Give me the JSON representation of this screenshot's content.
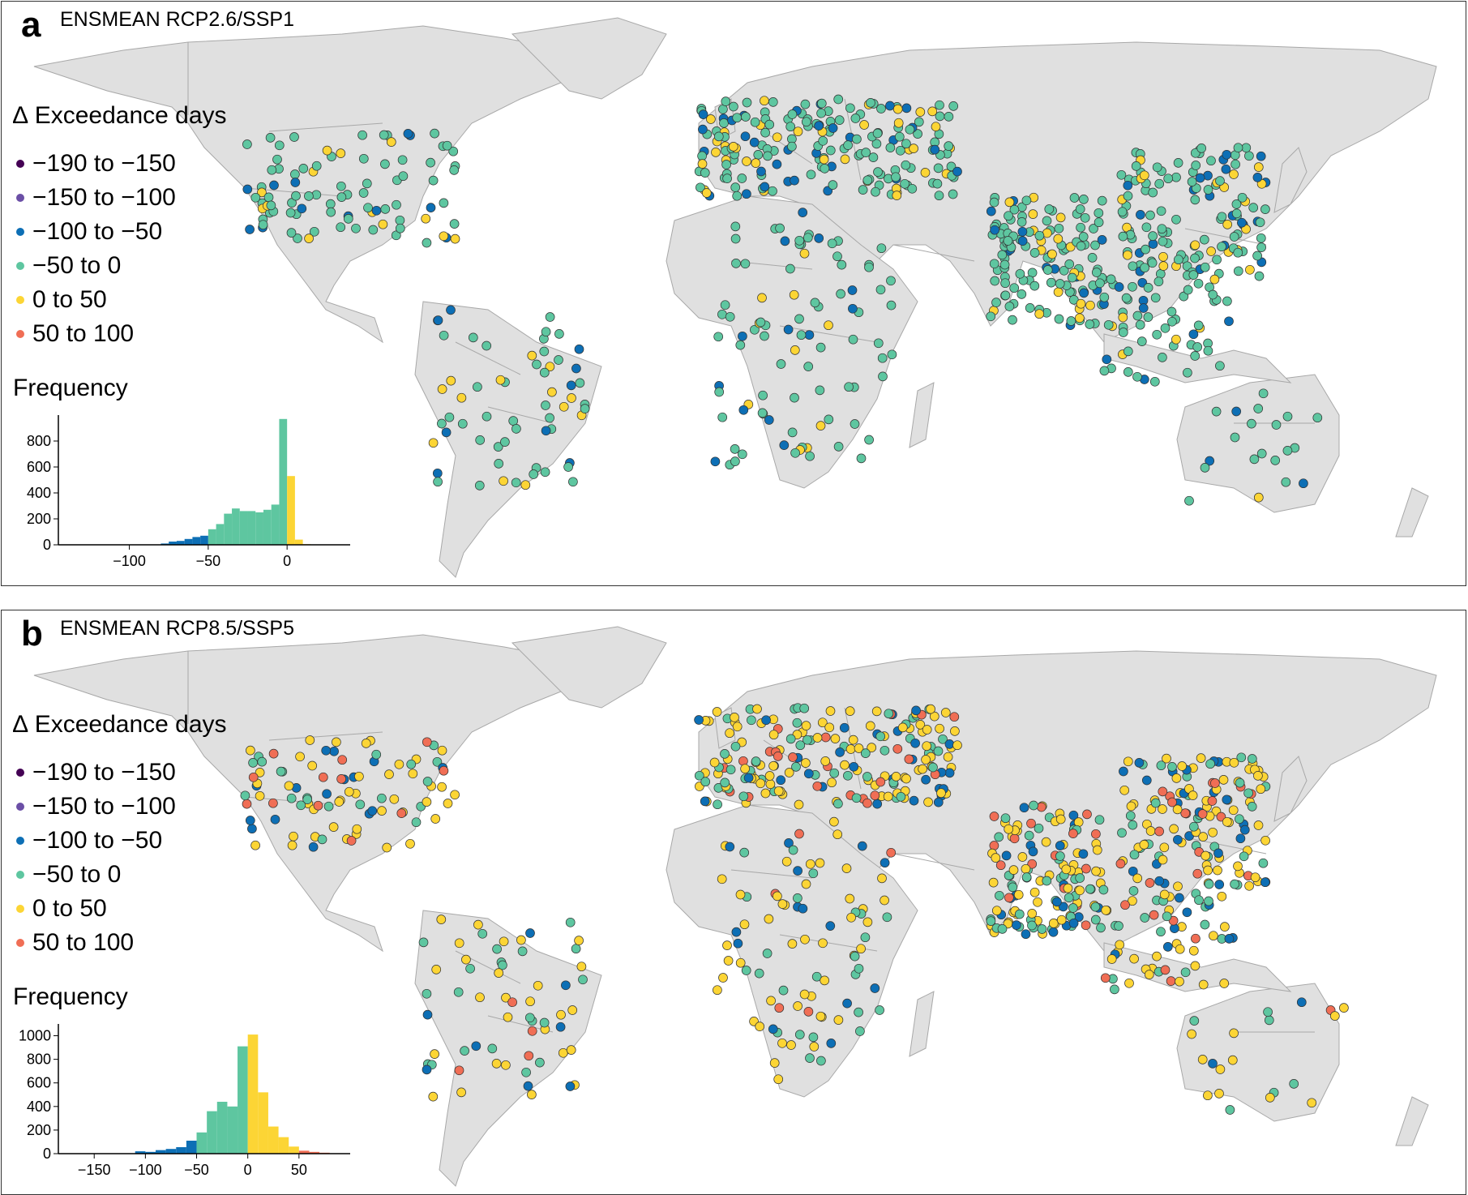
{
  "panels": [
    {
      "letter": "a",
      "title": "ENSMEAN RCP2.6/SSP1",
      "legend_title": "∆ Exceedance days",
      "freq_title": "Frequency",
      "hist": {
        "xlim": [
          -145,
          40
        ],
        "ylim": [
          0,
          1000
        ],
        "yticks": [
          "0",
          "200",
          "400",
          "600",
          "800"
        ],
        "xticks": [
          "−100",
          "−50",
          "0"
        ],
        "xtick_values": [
          -100,
          -50,
          0
        ],
        "ytick_values": [
          0,
          200,
          400,
          600,
          800
        ],
        "bin_width": 5,
        "bins": [
          {
            "x0": -80,
            "v": 10,
            "c": "#0d6fb5"
          },
          {
            "x0": -75,
            "v": 25,
            "c": "#0d6fb5"
          },
          {
            "x0": -70,
            "v": 30,
            "c": "#0d6fb5"
          },
          {
            "x0": -65,
            "v": 45,
            "c": "#0d6fb5"
          },
          {
            "x0": -60,
            "v": 60,
            "c": "#0d6fb5"
          },
          {
            "x0": -55,
            "v": 70,
            "c": "#0d6fb5"
          },
          {
            "x0": -50,
            "v": 120,
            "c": "#5ec6a0"
          },
          {
            "x0": -45,
            "v": 160,
            "c": "#5ec6a0"
          },
          {
            "x0": -40,
            "v": 240,
            "c": "#5ec6a0"
          },
          {
            "x0": -35,
            "v": 280,
            "c": "#5ec6a0"
          },
          {
            "x0": -30,
            "v": 260,
            "c": "#5ec6a0"
          },
          {
            "x0": -25,
            "v": 260,
            "c": "#5ec6a0"
          },
          {
            "x0": -20,
            "v": 250,
            "c": "#5ec6a0"
          },
          {
            "x0": -15,
            "v": 270,
            "c": "#5ec6a0"
          },
          {
            "x0": -10,
            "v": 310,
            "c": "#5ec6a0"
          },
          {
            "x0": -5,
            "v": 970,
            "c": "#5ec6a0"
          },
          {
            "x0": 0,
            "v": 530,
            "c": "#fcd535"
          },
          {
            "x0": 5,
            "v": 40,
            "c": "#fcd535"
          },
          {
            "x0": 10,
            "v": 5,
            "c": "#fcd535"
          }
        ]
      }
    },
    {
      "letter": "b",
      "title": "ENSMEAN RCP8.5/SSP5",
      "legend_title": "∆ Exceedance days",
      "freq_title": "Frequency",
      "hist": {
        "xlim": [
          -185,
          100
        ],
        "ylim": [
          0,
          1100
        ],
        "yticks": [
          "0",
          "200",
          "400",
          "600",
          "800",
          "1000"
        ],
        "xticks": [
          "−150",
          "−100",
          "−50",
          "0",
          "50"
        ],
        "xtick_values": [
          -150,
          -100,
          -50,
          0,
          50
        ],
        "ytick_values": [
          0,
          200,
          400,
          600,
          800,
          1000
        ],
        "bin_width": 10,
        "bins": [
          {
            "x0": -110,
            "v": 20,
            "c": "#0d6fb5"
          },
          {
            "x0": -100,
            "v": 15,
            "c": "#0d6fb5"
          },
          {
            "x0": -90,
            "v": 30,
            "c": "#0d6fb5"
          },
          {
            "x0": -80,
            "v": 40,
            "c": "#0d6fb5"
          },
          {
            "x0": -70,
            "v": 55,
            "c": "#0d6fb5"
          },
          {
            "x0": -60,
            "v": 110,
            "c": "#0d6fb5"
          },
          {
            "x0": -50,
            "v": 180,
            "c": "#5ec6a0"
          },
          {
            "x0": -40,
            "v": 360,
            "c": "#5ec6a0"
          },
          {
            "x0": -30,
            "v": 440,
            "c": "#5ec6a0"
          },
          {
            "x0": -20,
            "v": 400,
            "c": "#5ec6a0"
          },
          {
            "x0": -10,
            "v": 910,
            "c": "#5ec6a0"
          },
          {
            "x0": 0,
            "v": 1010,
            "c": "#fcd535"
          },
          {
            "x0": 10,
            "v": 520,
            "c": "#fcd535"
          },
          {
            "x0": 20,
            "v": 230,
            "c": "#fcd535"
          },
          {
            "x0": 30,
            "v": 140,
            "c": "#fcd535"
          },
          {
            "x0": 40,
            "v": 60,
            "c": "#fcd535"
          },
          {
            "x0": 50,
            "v": 25,
            "c": "#f06e55"
          },
          {
            "x0": 60,
            "v": 15,
            "c": "#f06e55"
          },
          {
            "x0": 70,
            "v": 8,
            "c": "#f06e55"
          }
        ]
      }
    }
  ],
  "legend_items": [
    {
      "label": "−190 to −150",
      "color": "#440154"
    },
    {
      "label": "−150 to −100",
      "color": "#6b4fa6"
    },
    {
      "label": "−100 to −50",
      "color": "#0d6fb5"
    },
    {
      "label": "−50 to 0",
      "color": "#5ec6a0"
    },
    {
      "label": "0 to 50",
      "color": "#fcd535"
    },
    {
      "label": "50 to 100",
      "color": "#f06e55"
    }
  ],
  "chart_data": [
    {
      "type": "bar",
      "title": "Frequency",
      "xlim": [
        -145,
        40
      ],
      "ylim": [
        0,
        1000
      ],
      "x": [
        -80,
        -75,
        -70,
        -65,
        -60,
        -55,
        -50,
        -45,
        -40,
        -35,
        -30,
        -25,
        -20,
        -15,
        -10,
        -5,
        0,
        5,
        10
      ],
      "values": [
        10,
        25,
        30,
        45,
        60,
        70,
        120,
        160,
        240,
        280,
        260,
        260,
        250,
        270,
        310,
        970,
        530,
        40,
        5
      ]
    },
    {
      "type": "bar",
      "title": "Frequency",
      "xlim": [
        -185,
        100
      ],
      "ylim": [
        0,
        1100
      ],
      "x": [
        -110,
        -100,
        -90,
        -80,
        -70,
        -60,
        -50,
        -40,
        -30,
        -20,
        -10,
        0,
        10,
        20,
        30,
        40,
        50,
        60,
        70
      ],
      "values": [
        20,
        15,
        30,
        40,
        55,
        110,
        180,
        360,
        440,
        400,
        910,
        1010,
        520,
        230,
        140,
        60,
        25,
        15,
        8
      ]
    }
  ]
}
